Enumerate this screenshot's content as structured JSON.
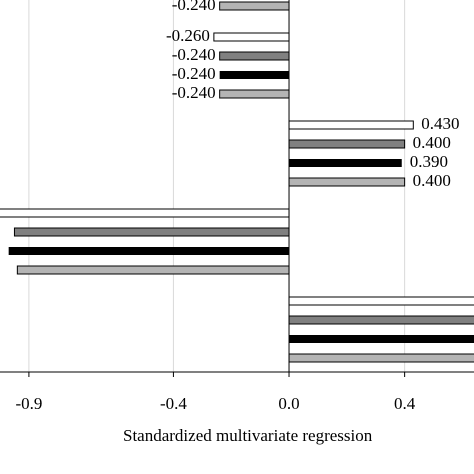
{
  "chart_data": {
    "type": "bar",
    "orientation": "horizontal",
    "xlabel": "Standardized multivariate regression",
    "xlim": [
      -1.0,
      0.64
    ],
    "xticks": [
      -0.9,
      -0.4,
      {
        "value": 0,
        "label": "0.0"
      },
      0.4
    ],
    "grid": true,
    "categories": [
      null,
      null,
      null,
      null,
      null
    ],
    "series": [
      {
        "color": "#ffffff",
        "values": [
          null,
          -0.26,
          0.43,
          -1.05,
          0.7
        ],
        "value_labels": [
          null,
          "-0.260",
          "0.430",
          null,
          null
        ]
      },
      {
        "color": "#808080",
        "values": [
          null,
          -0.24,
          0.4,
          -0.95,
          0.7
        ],
        "value_labels": [
          null,
          "-0.240",
          "0.400",
          null,
          null
        ]
      },
      {
        "color": "#000000",
        "values": [
          null,
          -0.24,
          0.39,
          -0.97,
          0.7
        ],
        "value_labels": [
          null,
          "-0.240",
          "0.390",
          null,
          null
        ]
      },
      {
        "color": "#b4b4b4",
        "values": [
          -0.24,
          -0.24,
          0.4,
          -0.94,
          0.7
        ],
        "value_labels": [
          "-0.240",
          "-0.240",
          "0.400",
          null,
          null
        ]
      }
    ]
  }
}
